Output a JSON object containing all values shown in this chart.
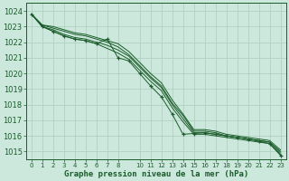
{
  "bg_color": "#cce8dc",
  "grid_color": "#aaccbb",
  "line_color": "#1a5c2a",
  "xlabel": "Graphe pression niveau de la mer (hPa)",
  "xlabel_fontsize": 6.5,
  "ylabel_fontsize": 6,
  "xlim": [
    -0.5,
    23.5
  ],
  "ylim": [
    1014.5,
    1024.5
  ],
  "yticks": [
    1015,
    1016,
    1017,
    1018,
    1019,
    1020,
    1021,
    1022,
    1023,
    1024
  ],
  "xticks": [
    0,
    1,
    2,
    3,
    4,
    5,
    6,
    7,
    8,
    10,
    11,
    12,
    13,
    14,
    15,
    16,
    17,
    18,
    19,
    20,
    21,
    22,
    23
  ],
  "line1_x": [
    0,
    1,
    2,
    3,
    4,
    5,
    6,
    7,
    8,
    9,
    10,
    11,
    12,
    13,
    14,
    15,
    16,
    17,
    18,
    19,
    20,
    21,
    22,
    23
  ],
  "line1_y": [
    1023.8,
    1023.0,
    1022.7,
    1022.4,
    1022.2,
    1022.1,
    1021.9,
    1021.6,
    1021.3,
    1020.9,
    1020.2,
    1019.5,
    1018.9,
    1017.8,
    1016.9,
    1016.1,
    1016.1,
    1016.0,
    1015.9,
    1015.8,
    1015.7,
    1015.6,
    1015.5,
    1014.8
  ],
  "line2_x": [
    0,
    1,
    2,
    3,
    4,
    5,
    6,
    7,
    8,
    9,
    10,
    11,
    12,
    13,
    14,
    15,
    16,
    17,
    18,
    19,
    20,
    21,
    22,
    23
  ],
  "line2_y": [
    1023.8,
    1023.0,
    1022.8,
    1022.5,
    1022.3,
    1022.2,
    1022.0,
    1021.8,
    1021.5,
    1021.1,
    1020.4,
    1019.7,
    1019.1,
    1018.0,
    1017.1,
    1016.2,
    1016.2,
    1016.1,
    1016.0,
    1015.9,
    1015.8,
    1015.7,
    1015.6,
    1014.9
  ],
  "line3_x": [
    0,
    1,
    2,
    3,
    4,
    5,
    6,
    7,
    8,
    9,
    10,
    11,
    12,
    13,
    14,
    15,
    16,
    17,
    18,
    19,
    20,
    21,
    22,
    23
  ],
  "line3_y": [
    1023.8,
    1023.1,
    1022.9,
    1022.7,
    1022.5,
    1022.4,
    1022.2,
    1022.0,
    1021.7,
    1021.2,
    1020.5,
    1019.8,
    1019.2,
    1018.1,
    1017.3,
    1016.3,
    1016.3,
    1016.2,
    1016.0,
    1015.9,
    1015.8,
    1015.7,
    1015.6,
    1015.0
  ],
  "line4_x": [
    0,
    1,
    2,
    3,
    4,
    5,
    6,
    7,
    8,
    9,
    10,
    11,
    12,
    13,
    14,
    15,
    16,
    17,
    18,
    19,
    20,
    21,
    22,
    23
  ],
  "line4_y": [
    1023.8,
    1023.1,
    1023.0,
    1022.8,
    1022.6,
    1022.5,
    1022.3,
    1022.1,
    1021.9,
    1021.4,
    1020.7,
    1020.0,
    1019.4,
    1018.3,
    1017.4,
    1016.4,
    1016.4,
    1016.3,
    1016.1,
    1016.0,
    1015.9,
    1015.8,
    1015.7,
    1015.1
  ],
  "marker_x": [
    0,
    1,
    2,
    3,
    4,
    5,
    6,
    7,
    8,
    9,
    10,
    11,
    12,
    13,
    14,
    15,
    16,
    17,
    18,
    19,
    20,
    21,
    22,
    23
  ],
  "marker_y": [
    1023.8,
    1023.0,
    1022.7,
    1022.4,
    1022.2,
    1022.1,
    1021.9,
    1022.2,
    1021.0,
    1020.8,
    1020.0,
    1019.2,
    1018.5,
    1017.4,
    1016.1,
    1016.15,
    1016.2,
    1016.1,
    1016.0,
    1015.9,
    1015.8,
    1015.65,
    1015.5,
    1014.75
  ]
}
